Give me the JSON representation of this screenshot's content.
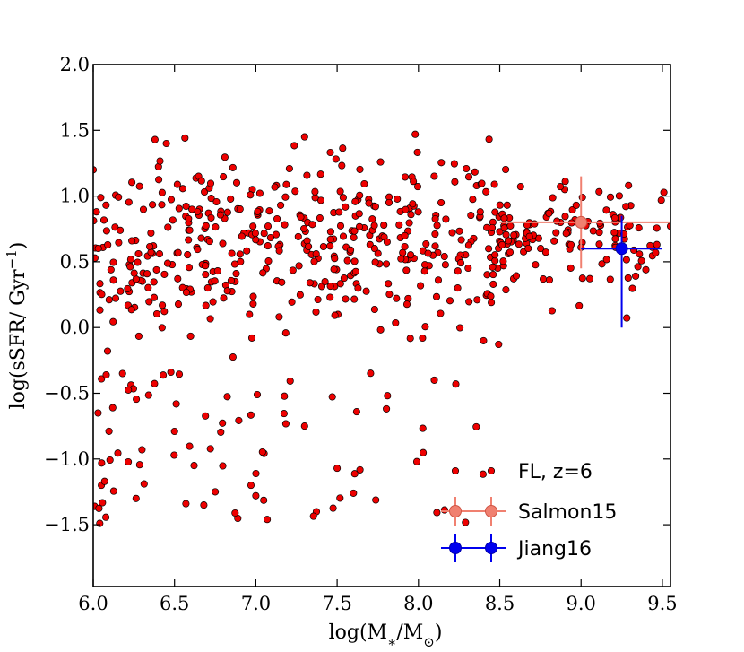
{
  "chart_data": {
    "type": "scatter",
    "title": "",
    "xlabel": "log(M_*/M_⊙)",
    "ylabel": "log(sSFR/ Gyr^-1)",
    "xlim": [
      6.0,
      9.55
    ],
    "ylim": [
      -1.97,
      2.0
    ],
    "x_ticks": [
      {
        "value": 6.0,
        "label": "6.0"
      },
      {
        "value": 6.5,
        "label": "6.5"
      },
      {
        "value": 7.0,
        "label": "7.0"
      },
      {
        "value": 7.5,
        "label": "7.5"
      },
      {
        "value": 8.0,
        "label": "8.0"
      },
      {
        "value": 8.5,
        "label": "8.5"
      },
      {
        "value": 9.0,
        "label": "9.0"
      },
      {
        "value": 9.5,
        "label": "9.5"
      }
    ],
    "y_ticks": [
      {
        "value": 2.0,
        "label": "2.0"
      },
      {
        "value": 1.5,
        "label": "1.5"
      },
      {
        "value": 1.0,
        "label": "1.0"
      },
      {
        "value": 0.5,
        "label": "0.5"
      },
      {
        "value": 0.0,
        "label": "0.0"
      },
      {
        "value": -0.5,
        "label": "−0.5"
      },
      {
        "value": -1.0,
        "label": "−1.0"
      },
      {
        "value": -1.5,
        "label": "−1.5"
      }
    ],
    "grid": false,
    "legend_position": "bottom-right",
    "series": [
      {
        "name": "FL, z=6",
        "kind": "scatter",
        "color": "#ee0000",
        "edge_color": "#000000",
        "generator": {
          "count": 620,
          "seed": 20160601,
          "note": "approximate reproduction of the point cloud",
          "x_range": [
            6.0,
            9.55
          ],
          "core_y_mean": 0.62,
          "core_y_sd": 0.36,
          "outlier_fraction": 0.09,
          "outlier_y_range": [
            -1.5,
            -0.3
          ]
        },
        "sample_points": [
          [
            6.0,
            1.2
          ],
          [
            6.02,
            0.88
          ],
          [
            6.03,
            -0.65
          ],
          [
            6.04,
            -1.49
          ],
          [
            6.05,
            -1.2
          ],
          [
            6.07,
            -1.17
          ],
          [
            6.08,
            -0.36
          ],
          [
            6.12,
            -0.61
          ],
          [
            6.18,
            -0.35
          ],
          [
            6.3,
            -0.93
          ],
          [
            6.38,
            1.43
          ],
          [
            6.45,
            1.4
          ],
          [
            6.5,
            -0.79
          ],
          [
            6.57,
            -1.34
          ],
          [
            6.62,
            -1.05
          ],
          [
            6.68,
            -1.35
          ],
          [
            6.75,
            -1.25
          ],
          [
            6.97,
            -1.2
          ],
          [
            7.0,
            -1.28
          ],
          [
            7.07,
            -1.46
          ],
          [
            7.3,
            -0.75
          ],
          [
            7.5,
            -1.07
          ],
          [
            7.6,
            -1.26
          ],
          [
            7.3,
            1.45
          ],
          [
            7.98,
            1.47
          ],
          [
            7.99,
            -1.02
          ],
          [
            8.23,
            -0.43
          ],
          [
            8.4,
            -0.1
          ],
          [
            9.0,
            0.61
          ],
          [
            9.55,
            0.77
          ]
        ]
      },
      {
        "name": "Salmon15",
        "kind": "errorbar",
        "color": "#f08070",
        "edge_color": "#d05545",
        "points": [
          {
            "x": 9.0,
            "y": 0.8,
            "x_err": [
              0.5,
              0.55
            ],
            "y_err": [
              0.35,
              0.35
            ]
          }
        ]
      },
      {
        "name": "Jiang16",
        "kind": "errorbar",
        "color": "#0000ee",
        "edge_color": "#0000aa",
        "points": [
          {
            "x": 9.25,
            "y": 0.6,
            "x_err": [
              0.25,
              0.25
            ],
            "y_err": [
              0.6,
              0.25
            ]
          }
        ]
      }
    ]
  }
}
